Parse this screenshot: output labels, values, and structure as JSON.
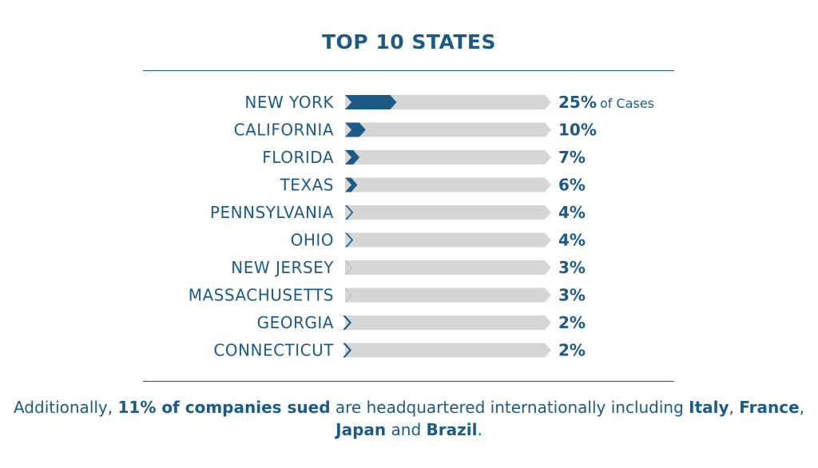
{
  "chart_data": {
    "type": "bar",
    "title": "TOP 10 STATES",
    "categories": [
      "NEW YORK",
      "CALIFORNIA",
      "FLORIDA",
      "TEXAS",
      "PENNSYLVANIA",
      "OHIO",
      "NEW JERSEY",
      "MASSACHUSETTS",
      "GEORGIA",
      "CONNECTICUT"
    ],
    "values": [
      25,
      10,
      7,
      6,
      4,
      4,
      3,
      3,
      2,
      2
    ],
    "value_labels": [
      "25%",
      "10%",
      "7%",
      "6%",
      "4%",
      "4%",
      "3%",
      "3%",
      "2%",
      "2%"
    ],
    "first_label_suffix": "of Cases",
    "xlim": [
      0,
      100
    ],
    "orientation": "horizontal",
    "grid": false,
    "colors": {
      "fill": "#1e5a86",
      "track": "#d6d6d6",
      "text": "#1e5a86"
    }
  },
  "footnote": {
    "p1": "Additionally, ",
    "b1": "11% of companies sued",
    "p2": " are headquartered internationally including ",
    "b2": "Italy",
    "p3": ", ",
    "b3": "France",
    "p4": ", ",
    "b4": "Japan",
    "p5": " and ",
    "b5": "Brazil",
    "p6": "."
  }
}
